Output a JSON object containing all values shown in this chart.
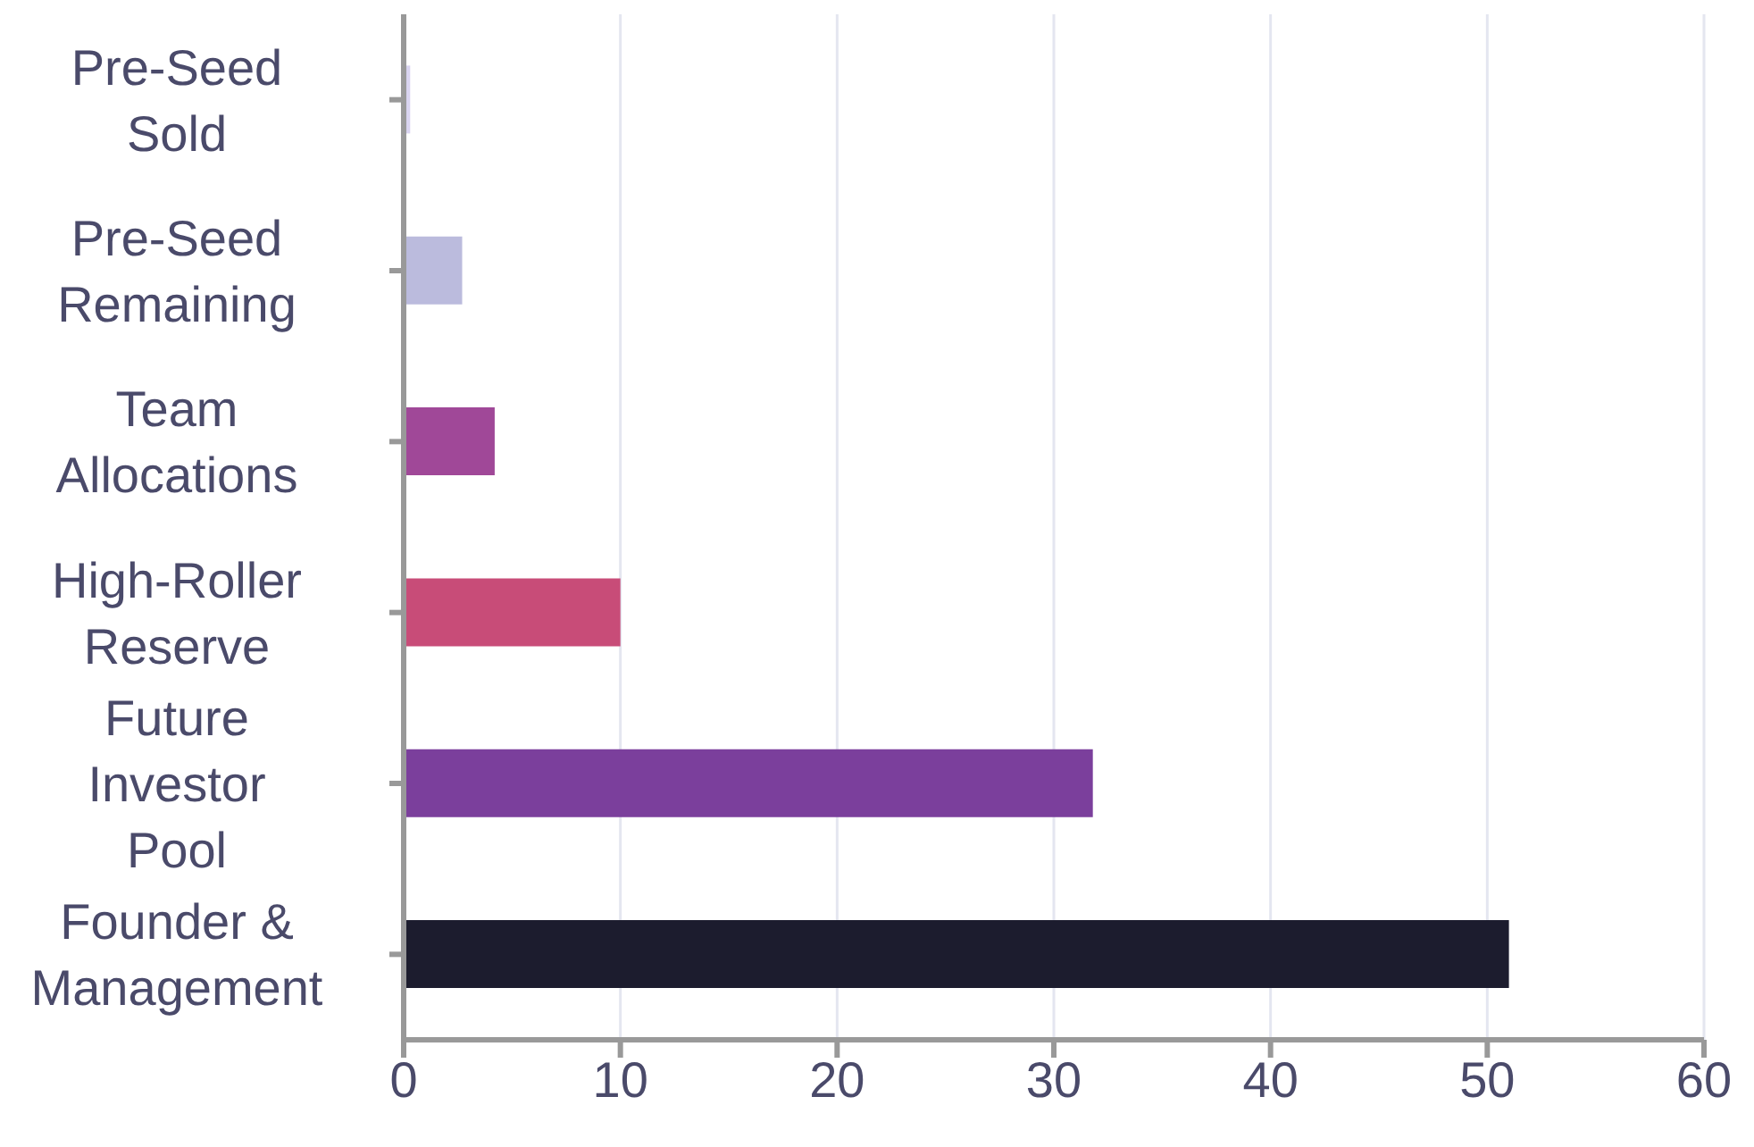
{
  "chart_data": {
    "type": "bar",
    "orientation": "horizontal",
    "categories": [
      "Pre-Seed Sold",
      "Pre-Seed Remaining",
      "Team Allocations",
      "High-Roller Reserve",
      "Future Investor Pool",
      "Founder & Management"
    ],
    "values": [
      0.3,
      2.7,
      4.2,
      10,
      31.8,
      51
    ],
    "colors": [
      "#d9d4f0",
      "#bbbbdd",
      "#a04898",
      "#c84c78",
      "#7b3f9c",
      "#1c1c2e"
    ],
    "xlim": [
      0,
      60
    ],
    "xticks": [
      0,
      10,
      20,
      30,
      40,
      50,
      60
    ],
    "grid": "x"
  }
}
